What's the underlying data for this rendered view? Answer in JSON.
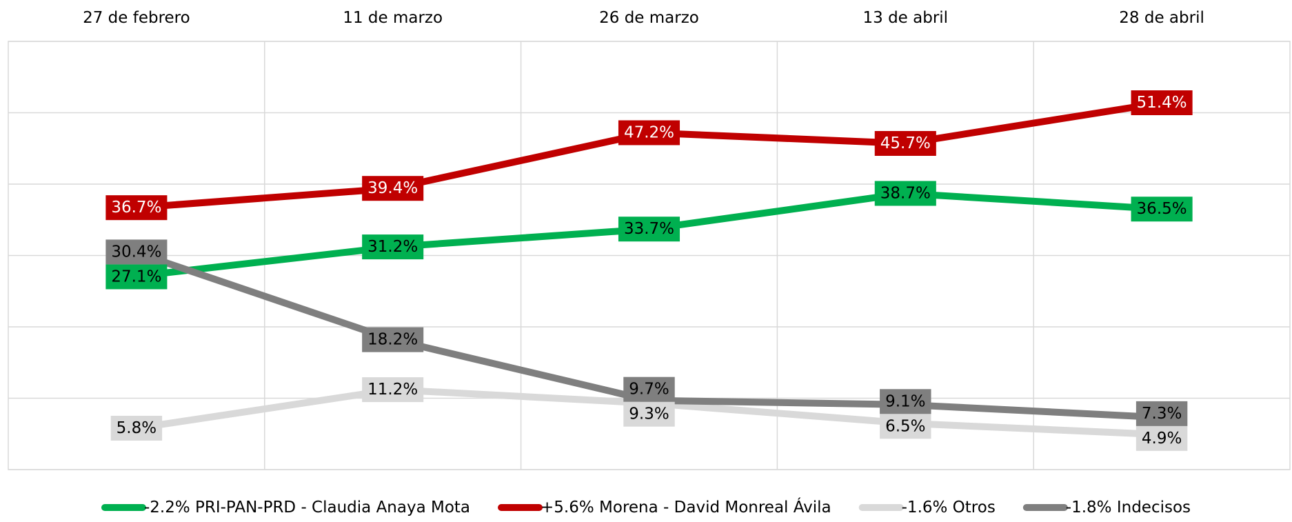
{
  "chart_data": {
    "type": "line",
    "categories": [
      "27 de febrero",
      "11 de marzo",
      "26 de marzo",
      "13 de abril",
      "28 de abril"
    ],
    "series": [
      {
        "name": "-2.2% PRI-PAN-PRD - Claudia Anaya Mota",
        "color": "#00b050",
        "label_text_color": "#000000",
        "values": [
          27.1,
          31.2,
          33.7,
          38.7,
          36.5
        ],
        "value_labels": [
          "27.1%",
          "31.2%",
          "33.7%",
          "38.7%",
          "36.5%"
        ]
      },
      {
        "name": "+5.6% Morena - David Monreal Ávila",
        "color": "#c00000",
        "label_text_color": "#ffffff",
        "values": [
          36.7,
          39.4,
          47.2,
          45.7,
          51.4
        ],
        "value_labels": [
          "36.7%",
          "39.4%",
          "47.2%",
          "45.7%",
          "51.4%"
        ]
      },
      {
        "name": "-1.6% Otros",
        "color": "#d9d9d9",
        "label_text_color": "#000000",
        "values": [
          5.8,
          11.2,
          9.3,
          6.5,
          4.9
        ],
        "value_labels": [
          "5.8%",
          "11.2%",
          "9.3%",
          "6.5%",
          "4.9%"
        ]
      },
      {
        "name": "-1.8% Indecisos",
        "color": "#7f7f7f",
        "label_text_color": "#000000",
        "values": [
          30.4,
          18.2,
          9.7,
          9.1,
          7.3
        ],
        "value_labels": [
          "30.4%",
          "18.2%",
          "9.7%",
          "9.1%",
          "7.3%"
        ]
      }
    ],
    "ylim": [
      0,
      60
    ],
    "yticks": [
      0,
      10,
      20,
      30,
      40,
      50,
      60
    ],
    "grid": true,
    "legend": "bottom"
  }
}
